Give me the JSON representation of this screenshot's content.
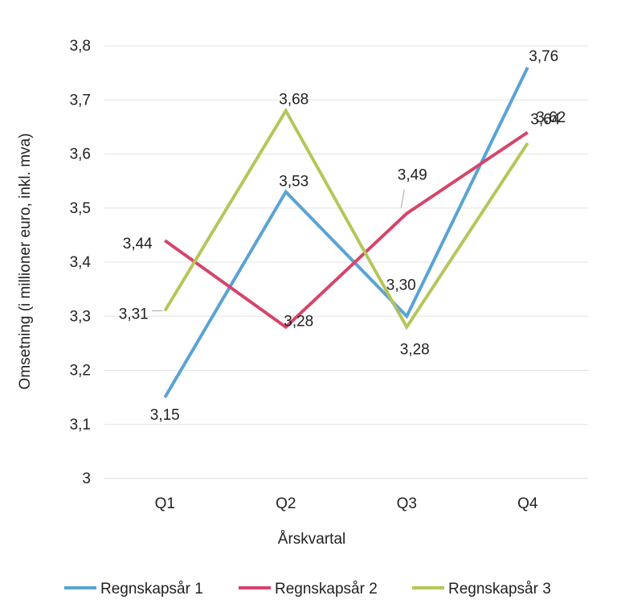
{
  "chart_data": {
    "type": "line",
    "categories": [
      "Q1",
      "Q2",
      "Q3",
      "Q4"
    ],
    "xlabel": "Årskvartal",
    "ylabel": "Omsetning (i millioner euro, inkl. mva)",
    "ylim": [
      3.0,
      3.8
    ],
    "y_ticks": [
      "3",
      "3,1",
      "3,2",
      "3,3",
      "3,4",
      "3,5",
      "3,6",
      "3,7",
      "3,8"
    ],
    "grid": "horizontal",
    "legend_position": "bottom",
    "series": [
      {
        "name": "Regnskapsår 1",
        "color": "#5aa3d4",
        "values": [
          3.15,
          3.53,
          3.3,
          3.76
        ],
        "labels": [
          "3,15",
          "3,53",
          "3,30",
          "3,76"
        ]
      },
      {
        "name": "Regnskapsår 2",
        "color": "#d6456a",
        "values": [
          3.44,
          3.28,
          3.49,
          3.64
        ],
        "labels": [
          "3,44",
          "3,28",
          "3,49",
          "3,64"
        ]
      },
      {
        "name": "Regnskapsår 3",
        "color": "#b7c55a",
        "values": [
          3.31,
          3.68,
          3.28,
          3.62
        ],
        "labels": [
          "3,31",
          "3,68",
          "3,28",
          "3,62"
        ]
      }
    ]
  }
}
